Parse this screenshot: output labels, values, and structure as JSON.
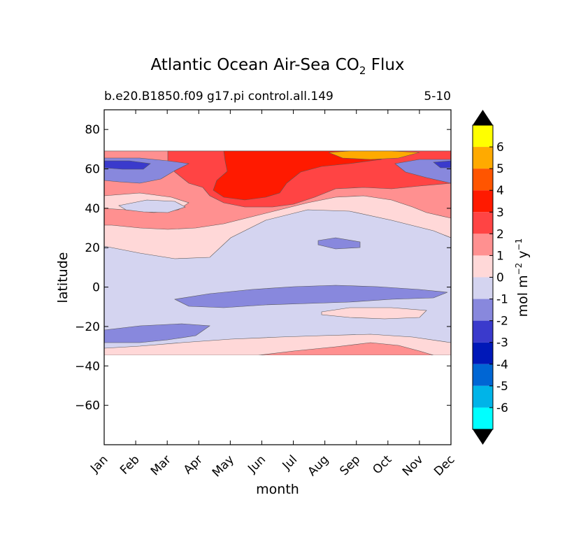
{
  "chart_data": {
    "type": "heatmap",
    "title_main": "Atlantic Ocean Air-Sea CO",
    "title_sub": "2",
    "title_end": " Flux",
    "subtitle_left": "b.e20.B1850.f09 g17.pi control.all.149",
    "subtitle_right": "5-10",
    "xlabel": "month",
    "ylabel": "latitude",
    "x_categories": [
      "Jan",
      "Feb",
      "Mar",
      "Apr",
      "May",
      "Jun",
      "Jul",
      "Aug",
      "Sep",
      "Oct",
      "Nov",
      "Dec"
    ],
    "xlim": [
      0,
      11
    ],
    "ylim": [
      -80,
      90
    ],
    "y_ticks": [
      {
        "value": 80,
        "label": "80"
      },
      {
        "value": 60,
        "label": "60"
      },
      {
        "value": 40,
        "label": "40"
      },
      {
        "value": 20,
        "label": "20"
      },
      {
        "value": 0,
        "label": "0"
      },
      {
        "value": -20,
        "label": "−20"
      },
      {
        "value": -40,
        "label": "−40"
      },
      {
        "value": -60,
        "label": "−60"
      }
    ],
    "data_lat_range": [
      -34,
      68
    ],
    "colorbar": {
      "label_main": "mol m",
      "label_exp1": "−2",
      "label_mid": " y",
      "label_exp2": "−1",
      "levels": [
        "6",
        "5",
        "4",
        "3",
        "2",
        "1",
        "0",
        "-1",
        "-2",
        "-3",
        "-4",
        "-5",
        "-6"
      ],
      "colors": [
        "#ffff00",
        "#ffaa00",
        "#ff5500",
        "#ff1a00",
        "#ff4444",
        "#ff9090",
        "#ffd8d8",
        "#d4d4f0",
        "#8888dd",
        "#3a3acc",
        "#0018b8",
        "#0066d4",
        "#00b4e8",
        "#00ffff"
      ],
      "extend": "both"
    },
    "regions": [
      {
        "level": "-1 to 0",
        "color": "#d4d4f0",
        "description": "background from 34S to about 20N and mid/high latitudes"
      },
      {
        "level": "0 to 1",
        "color": "#ffd8d8",
        "description": "band near 20-35N and near 30S"
      },
      {
        "level": "1 to 2",
        "color": "#ff9090",
        "description": "30-50N band"
      },
      {
        "level": "2 to 3",
        "color": "#ff4444",
        "description": "45-60N, Apr-Oct"
      },
      {
        "level": "3 to 4",
        "color": "#ff1a00",
        "description": "50-67N, May-Sep"
      },
      {
        "level": "4 to 6",
        "color": "#ffaa00",
        "description": "~66N, Sep-Oct maximum"
      },
      {
        "level": "-2 to -1",
        "color": "#8888dd",
        "description": "equatorial band, 20S band, 55-63N in winter"
      },
      {
        "level": "-3 to -2",
        "color": "#3a3acc",
        "description": "~62N in Jan and Dec"
      }
    ]
  }
}
